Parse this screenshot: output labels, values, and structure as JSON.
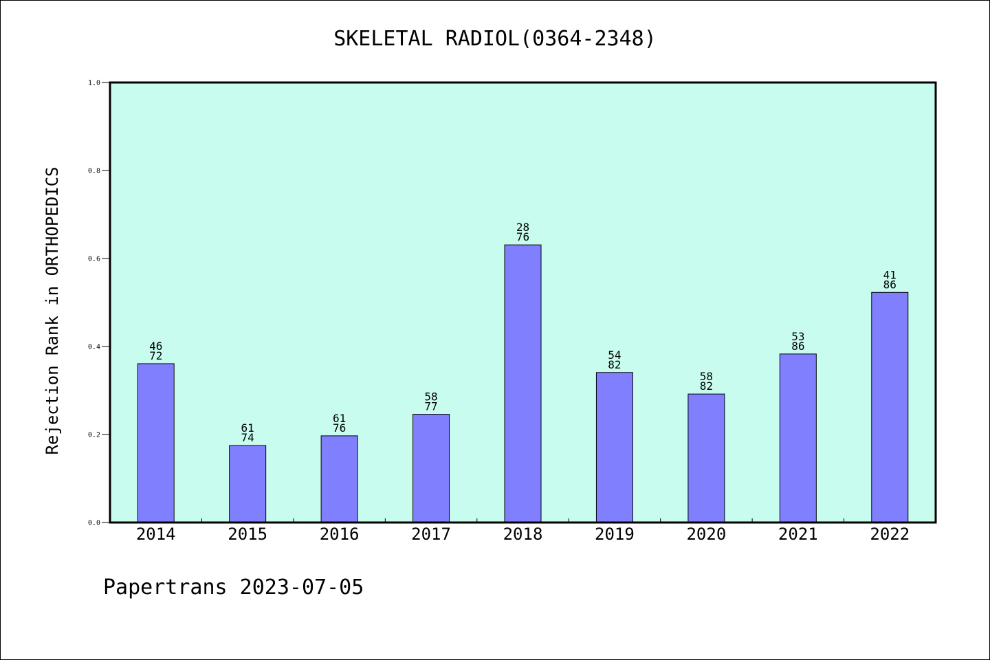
{
  "chart_data": {
    "type": "bar",
    "title": "SKELETAL RADIOL(0364-2348)",
    "xlabel": "",
    "ylabel": "Rejection Rank in ORTHOPEDICS",
    "ylim": [
      0.0,
      1.0
    ],
    "yticks": [
      "0.0",
      "0.2",
      "0.4",
      "0.6",
      "0.8",
      "1.0"
    ],
    "categories": [
      "2014",
      "2015",
      "2016",
      "2017",
      "2018",
      "2019",
      "2020",
      "2021",
      "2022"
    ],
    "values": [
      0.361,
      0.175,
      0.197,
      0.246,
      0.631,
      0.341,
      0.292,
      0.383,
      0.523
    ],
    "bar_labels": [
      [
        "46",
        "72"
      ],
      [
        "61",
        "74"
      ],
      [
        "61",
        "76"
      ],
      [
        "58",
        "77"
      ],
      [
        "28",
        "76"
      ],
      [
        "54",
        "82"
      ],
      [
        "58",
        "82"
      ],
      [
        "53",
        "86"
      ],
      [
        "41",
        "86"
      ]
    ],
    "grid": false,
    "colors": {
      "plot_background": "#c8fcee",
      "bar_fill": "#8080ff",
      "bar_edge": "#000000"
    }
  },
  "footer": "Papertrans 2023-07-05"
}
